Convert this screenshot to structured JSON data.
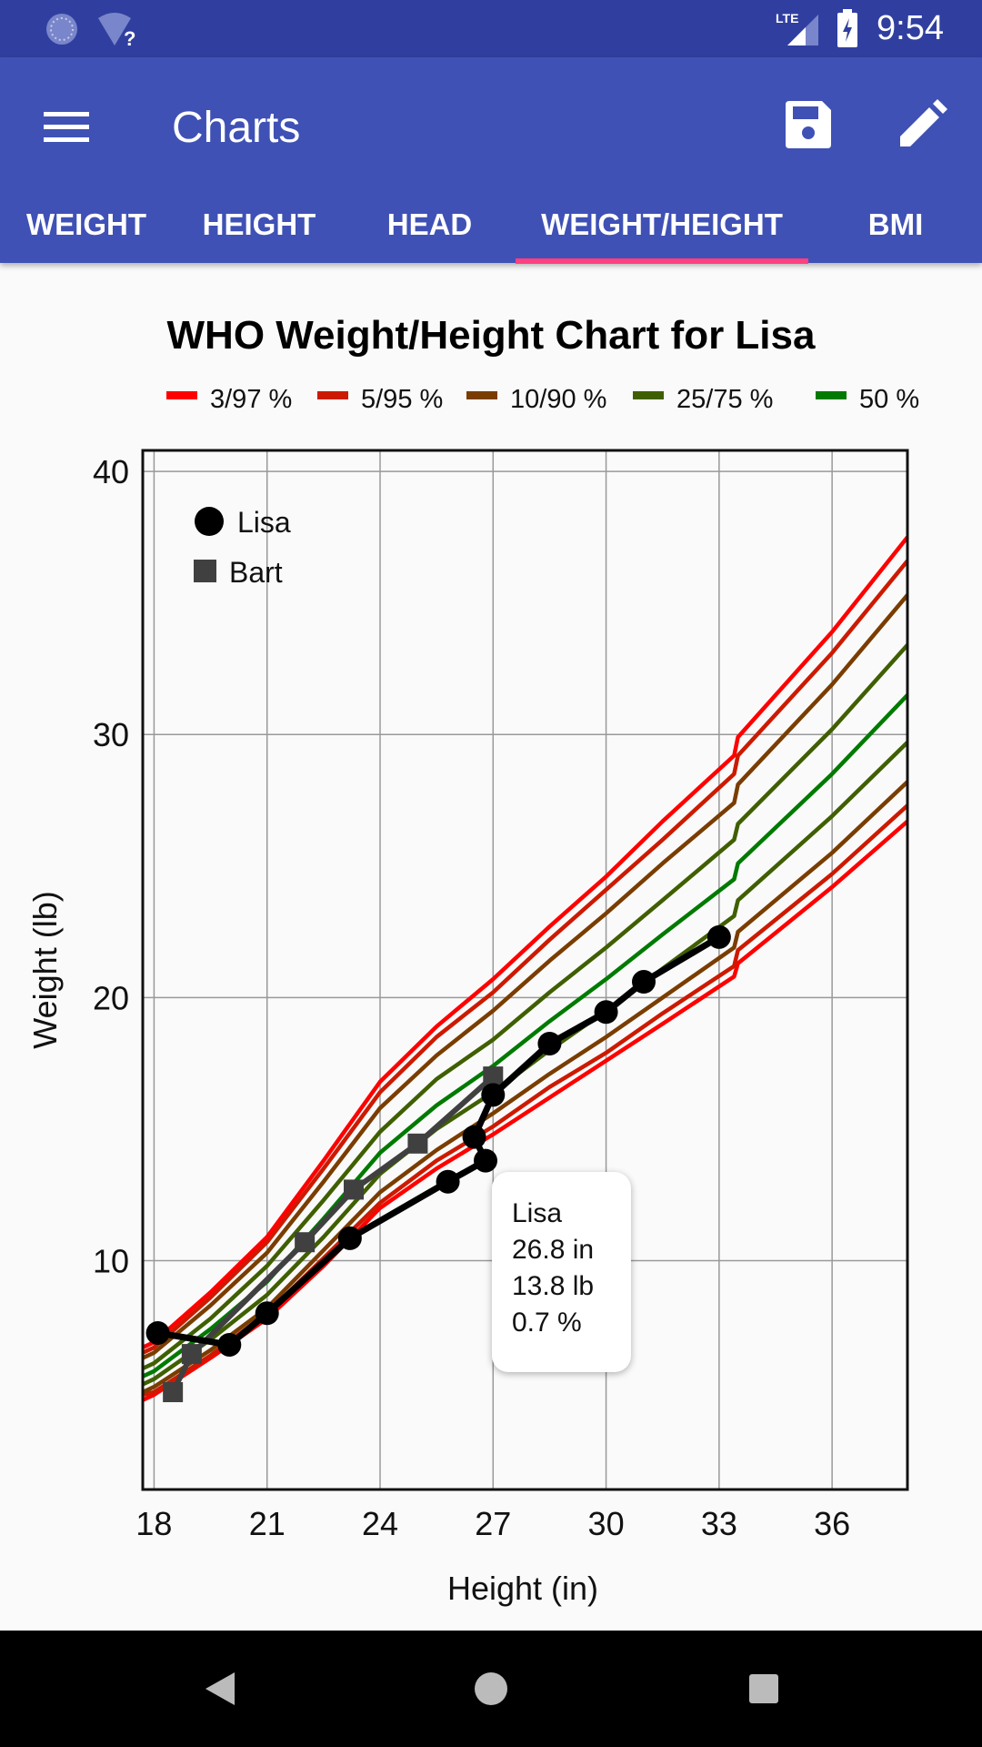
{
  "status_bar": {
    "time": "9:54",
    "network": "LTE",
    "icons": [
      "sync-icon",
      "wifi-unknown-icon",
      "signal-icon",
      "battery-charging-icon"
    ]
  },
  "app_bar": {
    "title": "Charts",
    "icons": [
      "menu-icon",
      "save-icon",
      "edit-icon"
    ]
  },
  "tabs": [
    {
      "label": "WEIGHT"
    },
    {
      "label": "HEIGHT"
    },
    {
      "label": "HEAD"
    },
    {
      "label": "WEIGHT/HEIGHT",
      "selected": true
    },
    {
      "label": "BMI"
    }
  ],
  "colors": {
    "status_bar": "#303f9f",
    "app_bar": "#3f51b5",
    "tab_indicator": "#ff4081"
  },
  "tooltip": {
    "lines": [
      "Lisa",
      "26.8 in",
      "13.8 lb",
      "0.7 %"
    ]
  },
  "chart_data": {
    "type": "line",
    "title": "WHO Weight/Height Chart for Lisa",
    "xlabel": "Height (in)",
    "ylabel": "Weight (lb)",
    "xlim": [
      17.7,
      38
    ],
    "ylim": [
      1.3,
      40.8
    ],
    "xticks": [
      18,
      21,
      24,
      27,
      30,
      33,
      36
    ],
    "yticks": [
      10,
      20,
      30,
      40
    ],
    "grid": true,
    "legend": [
      {
        "label": "3/97 %",
        "color": "#ff0000"
      },
      {
        "label": "5/95 %",
        "color": "#cc1a00"
      },
      {
        "label": "10/90 %",
        "color": "#7a3d00"
      },
      {
        "label": "25/75 %",
        "color": "#3f5f00"
      },
      {
        "label": "50 %",
        "color": "#007a00"
      }
    ],
    "legend_placement": "top",
    "percentile_x": [
      17.7,
      18,
      19.5,
      21,
      22.5,
      24,
      25.5,
      27,
      28.5,
      30,
      31.5,
      33.4,
      33.5,
      36,
      38
    ],
    "percentiles": [
      {
        "p": 3,
        "group": "3/97 %",
        "color": "#ff0000",
        "values": [
          4.7,
          4.9,
          6.3,
          7.8,
          9.8,
          12.0,
          13.5,
          14.8,
          16.2,
          17.6,
          19.0,
          20.8,
          21.3,
          24.2,
          26.7
        ]
      },
      {
        "p": 5,
        "group": "5/95 %",
        "color": "#cc1a00",
        "values": [
          4.9,
          5.0,
          6.4,
          8.0,
          10.1,
          12.2,
          13.8,
          15.1,
          16.6,
          17.9,
          19.4,
          21.2,
          21.8,
          24.7,
          27.3
        ]
      },
      {
        "p": 10,
        "group": "10/90 %",
        "color": "#7a3d00",
        "values": [
          5.0,
          5.2,
          6.6,
          8.2,
          10.4,
          12.6,
          14.2,
          15.6,
          17.1,
          18.5,
          20.0,
          21.9,
          22.5,
          25.5,
          28.2
        ]
      },
      {
        "p": 25,
        "group": "25/75 %",
        "color": "#3f5f00",
        "values": [
          5.3,
          5.5,
          7.0,
          8.7,
          10.9,
          13.3,
          15.0,
          16.4,
          18.0,
          19.5,
          21.1,
          23.1,
          23.7,
          26.9,
          29.7
        ]
      },
      {
        "p": 50,
        "group": "50 %",
        "color": "#007a00",
        "values": [
          5.6,
          5.8,
          7.4,
          9.2,
          11.6,
          14.1,
          15.9,
          17.4,
          19.1,
          20.7,
          22.4,
          24.5,
          25.1,
          28.5,
          31.5
        ]
      },
      {
        "p": 75,
        "group": "25/75 %",
        "color": "#3f5f00",
        "values": [
          5.9,
          6.1,
          7.8,
          9.8,
          12.3,
          14.9,
          16.9,
          18.4,
          20.2,
          21.9,
          23.7,
          26.0,
          26.6,
          30.2,
          33.4
        ]
      },
      {
        "p": 90,
        "group": "10/90 %",
        "color": "#7a3d00",
        "values": [
          6.3,
          6.5,
          8.3,
          10.3,
          13.0,
          15.8,
          17.8,
          19.5,
          21.4,
          23.2,
          25.1,
          27.4,
          28.1,
          31.9,
          35.3
        ]
      },
      {
        "p": 95,
        "group": "5/95 %",
        "color": "#cc1a00",
        "values": [
          6.5,
          6.7,
          8.6,
          10.7,
          13.5,
          16.4,
          18.5,
          20.2,
          22.2,
          24.1,
          26.0,
          28.5,
          29.2,
          33.1,
          36.6
        ]
      },
      {
        "p": 97,
        "group": "3/97 %",
        "color": "#ff0000",
        "values": [
          6.7,
          6.9,
          8.8,
          10.9,
          13.8,
          16.8,
          18.9,
          20.7,
          22.7,
          24.6,
          26.7,
          29.2,
          29.9,
          33.9,
          37.5
        ]
      }
    ],
    "series": [
      {
        "name": "Lisa",
        "marker": "circle",
        "color": "#000000",
        "x": [
          18.1,
          20.0,
          21.0,
          23.2,
          25.8,
          26.8,
          26.5,
          27.0,
          28.5,
          30.0,
          31.0,
          33.0
        ],
        "y": [
          7.25,
          6.8,
          8.0,
          10.85,
          13.0,
          13.8,
          14.7,
          16.3,
          18.25,
          19.45,
          20.6,
          22.3
        ]
      },
      {
        "name": "Bart",
        "marker": "square",
        "color": "#404040",
        "x": [
          18.5,
          19.0,
          22.0,
          23.3,
          25.0,
          27.0
        ],
        "y": [
          5.0,
          6.45,
          10.7,
          12.7,
          14.45,
          17.0
        ]
      }
    ]
  }
}
